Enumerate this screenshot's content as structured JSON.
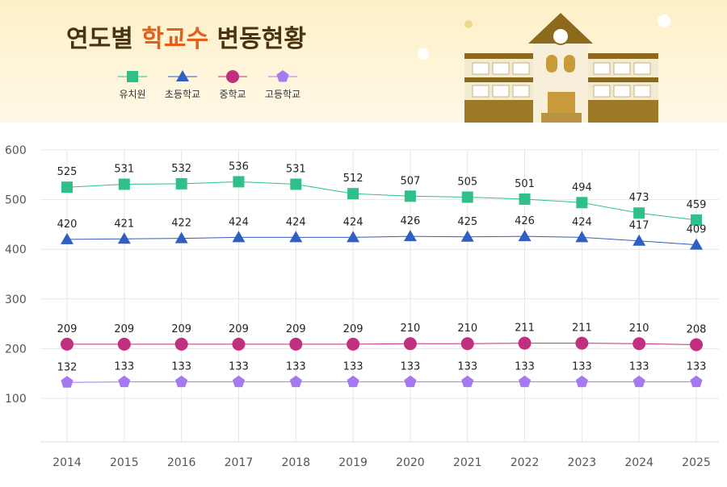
{
  "chart_data": {
    "type": "line",
    "title": [
      "연도별",
      "학교수",
      "변동현황"
    ],
    "categories": [
      "2014",
      "2015",
      "2016",
      "2017",
      "2018",
      "2019",
      "2020",
      "2021",
      "2022",
      "2023",
      "2024",
      "2025"
    ],
    "series": [
      {
        "name": "유치원",
        "color": "#2fc08a",
        "marker": "square",
        "values": [
          525,
          531,
          532,
          536,
          531,
          512,
          507,
          505,
          501,
          494,
          473,
          459
        ]
      },
      {
        "name": "초등학교",
        "color": "#2f5fc0",
        "marker": "triangle",
        "values": [
          420,
          421,
          422,
          424,
          424,
          424,
          426,
          425,
          426,
          424,
          417,
          409
        ]
      },
      {
        "name": "중학교",
        "color": "#c0307e",
        "marker": "circle",
        "values": [
          209,
          209,
          209,
          209,
          209,
          209,
          210,
          210,
          211,
          211,
          210,
          208
        ]
      },
      {
        "name": "고등학교",
        "color": "#a57af0",
        "marker": "pentagon",
        "values": [
          132,
          133,
          133,
          133,
          133,
          133,
          133,
          133,
          133,
          133,
          133,
          133
        ]
      }
    ],
    "ylim": [
      12,
      600
    ],
    "yticks": [
      100,
      200,
      300,
      400,
      500,
      600
    ],
    "grid": true
  }
}
